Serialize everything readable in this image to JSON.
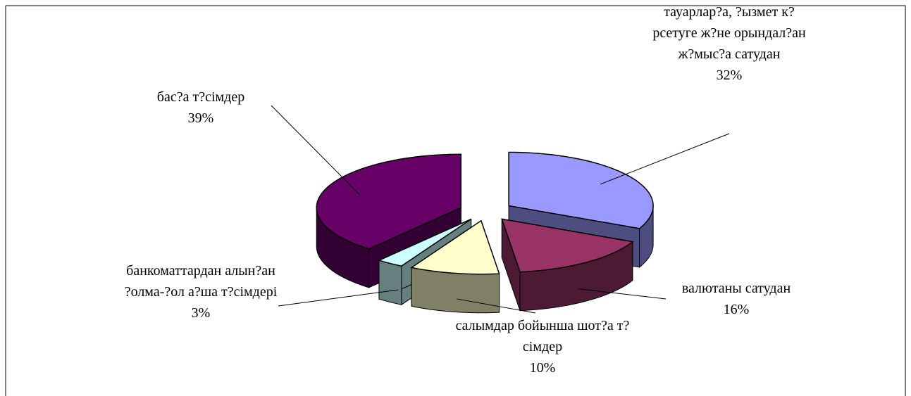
{
  "chart_data": {
    "type": "pie3d",
    "categories": [
      "тауарлар?а, ?ызмет к?рсетуге ж?не орындал?ан ж?мыс?а сатудан",
      "валютаны сатудан",
      "салымдар бойынша шот?а т?сімдер",
      "банкоматтардан алын?ан ?олма-?ол а?ша т?сімдері",
      "бас?а т?сімдер"
    ],
    "values": [
      32,
      16,
      10,
      3,
      39
    ],
    "value_labels": [
      "32%",
      "16%",
      "10%",
      "3%",
      "39%"
    ],
    "colors": [
      "#9999ff",
      "#993366",
      "#ffffcc",
      "#ccffff",
      "#660066"
    ]
  }
}
